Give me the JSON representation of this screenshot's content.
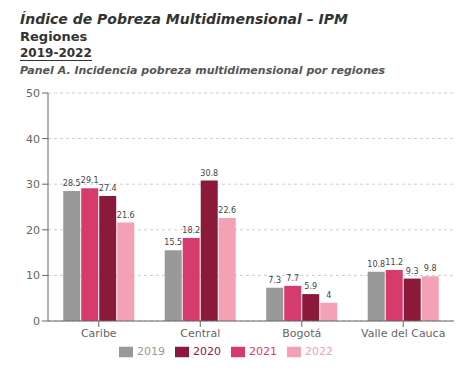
{
  "chart_data": {
    "type": "bar",
    "title": "Índice de Pobreza Multidimensional – IPM",
    "subtitle": "Regiones",
    "annotations": [
      "2019-2022",
      "Panel A. Incidencia pobreza multidimensional por regiones"
    ],
    "categories": [
      "Caribe",
      "Central",
      "Bogotá",
      "Valle del Cauca"
    ],
    "series": [
      {
        "name": "2019",
        "color": "#999999",
        "values": [
          28.5,
          15.5,
          7.3,
          10.8
        ]
      },
      {
        "name": "2021",
        "color": "#d63b6e",
        "values": [
          29.1,
          18.2,
          7.7,
          11.2
        ]
      },
      {
        "name": "2020",
        "color": "#8b1a3a",
        "values": [
          27.4,
          30.8,
          5.9,
          9.3
        ]
      },
      {
        "name": "2022",
        "color": "#f4a0b5",
        "values": [
          21.6,
          22.6,
          4.0,
          9.8
        ]
      }
    ],
    "ylim": [
      0,
      50
    ],
    "yticks": [
      0,
      10,
      20,
      30,
      40,
      50
    ],
    "grid": true,
    "data_labels": true,
    "legend": "bottom"
  }
}
